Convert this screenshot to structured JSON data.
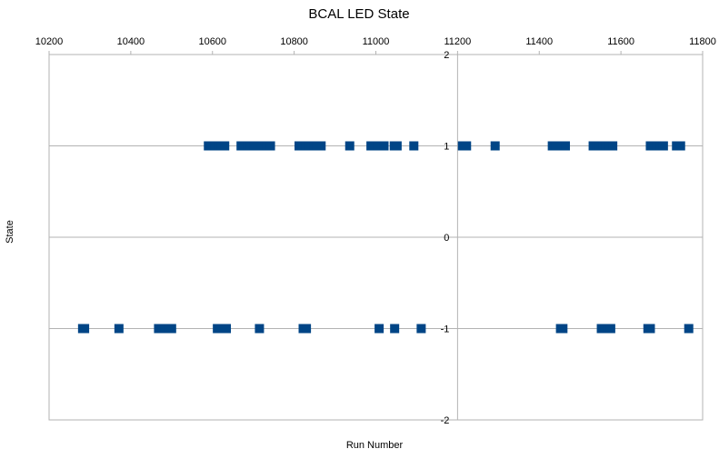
{
  "chart_data": {
    "type": "scatter",
    "title": "BCAL LED State",
    "xlabel": "Run Number",
    "ylabel": "State",
    "xlim": [
      10200,
      11800
    ],
    "ylim": [
      -2,
      2
    ],
    "x_ticks": [
      10200,
      10400,
      10600,
      10800,
      11000,
      11200,
      11400,
      11600,
      11800
    ],
    "y_ticks": [
      2,
      1,
      0,
      -1,
      -2
    ],
    "x_ticks_position": "top",
    "y_ticks_position": "center",
    "grid": {
      "horizontal": true,
      "vertical": false
    },
    "legend": "none",
    "marker": {
      "shape": "square",
      "color": "#004586"
    },
    "points": [
      [
        10590,
        1
      ],
      [
        10598,
        1
      ],
      [
        10606,
        1
      ],
      [
        10614,
        1
      ],
      [
        10622,
        1
      ],
      [
        10630,
        1
      ],
      [
        10670,
        1
      ],
      [
        10678,
        1
      ],
      [
        10686,
        1
      ],
      [
        10694,
        1
      ],
      [
        10702,
        1
      ],
      [
        10710,
        1
      ],
      [
        10718,
        1
      ],
      [
        10726,
        1
      ],
      [
        10734,
        1
      ],
      [
        10742,
        1
      ],
      [
        10812,
        1
      ],
      [
        10820,
        1
      ],
      [
        10828,
        1
      ],
      [
        10836,
        1
      ],
      [
        10848,
        1
      ],
      [
        10856,
        1
      ],
      [
        10866,
        1
      ],
      [
        10936,
        1
      ],
      [
        10988,
        1
      ],
      [
        10996,
        1
      ],
      [
        11004,
        1
      ],
      [
        11012,
        1
      ],
      [
        11020,
        1
      ],
      [
        11045,
        1
      ],
      [
        11052,
        1
      ],
      [
        11093,
        1
      ],
      [
        11212,
        1
      ],
      [
        11222,
        1
      ],
      [
        11292,
        1
      ],
      [
        11432,
        1
      ],
      [
        11440,
        1
      ],
      [
        11448,
        1
      ],
      [
        11456,
        1
      ],
      [
        11464,
        1
      ],
      [
        11532,
        1
      ],
      [
        11540,
        1
      ],
      [
        11548,
        1
      ],
      [
        11556,
        1
      ],
      [
        11564,
        1
      ],
      [
        11572,
        1
      ],
      [
        11580,
        1
      ],
      [
        11672,
        1
      ],
      [
        11680,
        1
      ],
      [
        11688,
        1
      ],
      [
        11696,
        1
      ],
      [
        11704,
        1
      ],
      [
        11736,
        1
      ],
      [
        11746,
        1
      ],
      [
        10282,
        -1
      ],
      [
        10287,
        -1
      ],
      [
        10371,
        -1
      ],
      [
        10468,
        -1
      ],
      [
        10476,
        -1
      ],
      [
        10484,
        -1
      ],
      [
        10492,
        -1
      ],
      [
        10500,
        -1
      ],
      [
        10612,
        -1
      ],
      [
        10620,
        -1
      ],
      [
        10628,
        -1
      ],
      [
        10634,
        -1
      ],
      [
        10715,
        -1
      ],
      [
        10822,
        -1
      ],
      [
        10830,
        -1
      ],
      [
        11008,
        -1
      ],
      [
        11046,
        -1
      ],
      [
        11111,
        -1
      ],
      [
        11452,
        -1
      ],
      [
        11458,
        -1
      ],
      [
        11552,
        -1
      ],
      [
        11560,
        -1
      ],
      [
        11568,
        -1
      ],
      [
        11575,
        -1
      ],
      [
        11666,
        -1
      ],
      [
        11672,
        -1
      ],
      [
        11766,
        -1
      ]
    ]
  }
}
